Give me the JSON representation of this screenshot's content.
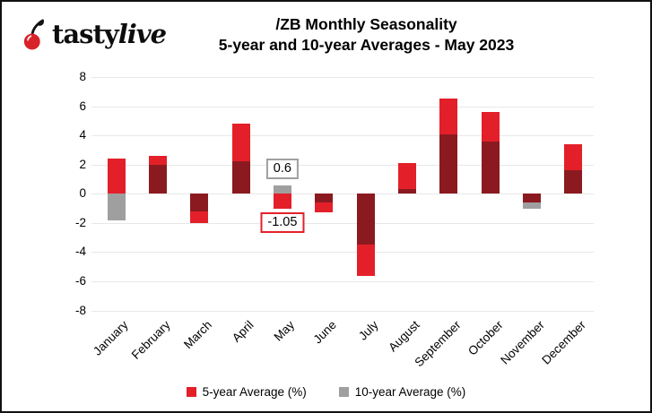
{
  "logo": {
    "brand_bold": "tasty",
    "brand_italic": "live",
    "cherry_color": "#d8232a"
  },
  "header": {
    "title": "/ZB Monthly Seasonality",
    "subtitle": "5-year and 10-year Averages - May 2023"
  },
  "chart_data": {
    "type": "bar",
    "title": "/ZB Monthly Seasonality",
    "subtitle": "5-year and 10-year Averages - May 2023",
    "categories": [
      "January",
      "February",
      "March",
      "April",
      "May",
      "June",
      "July",
      "August",
      "September",
      "October",
      "November",
      "December"
    ],
    "series": [
      {
        "name": "5-year Average (%)",
        "color": "#e32029",
        "values": [
          2.4,
          2.6,
          -2.0,
          4.8,
          -1.05,
          -1.3,
          -5.6,
          2.1,
          6.5,
          5.6,
          -0.6,
          3.4
        ]
      },
      {
        "name": "10-year Average (%)",
        "color": "#a09f9f",
        "values": [
          -1.8,
          2.0,
          -1.2,
          2.25,
          0.6,
          -0.6,
          -3.5,
          0.3,
          4.1,
          3.6,
          -1.0,
          1.6
        ]
      }
    ],
    "overlap_color": "#8b1a20",
    "bar_mode": "overlapped",
    "ylim": [
      -8,
      8
    ],
    "ytick_step": 2,
    "grid": true,
    "legend_position": "bottom",
    "annotations": [
      {
        "text": "0.6",
        "category_index": 4,
        "value": 0.6,
        "placement": "above",
        "border_color": "#a09f9f"
      },
      {
        "text": "-1.05",
        "category_index": 4,
        "value": -1.05,
        "placement": "below",
        "border_color": "#e32129"
      }
    ]
  }
}
